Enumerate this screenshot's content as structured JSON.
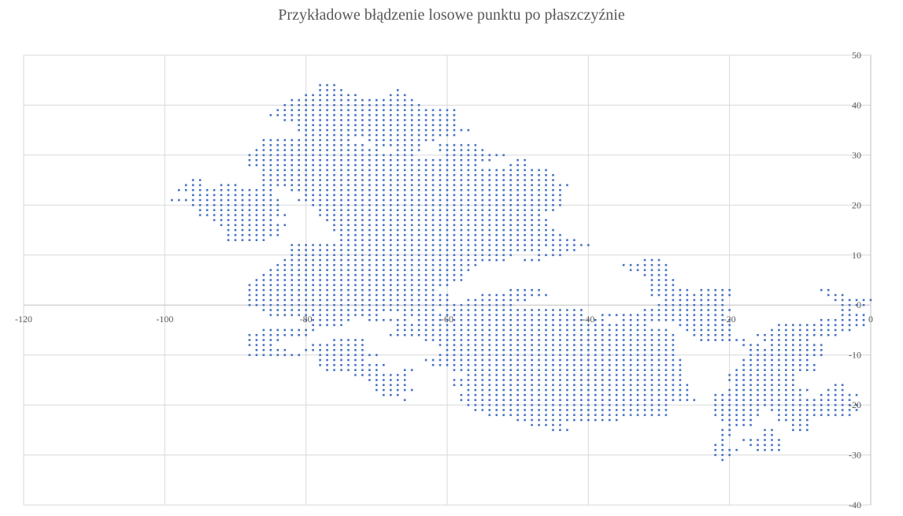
{
  "chart_data": {
    "type": "scatter",
    "title": "Przykładowe błądzenie losowe punktu po płaszczyźnie",
    "xlabel": "",
    "ylabel": "",
    "xlim": [
      -120,
      0
    ],
    "ylim": [
      -40,
      50
    ],
    "x_ticks": [
      -120,
      -100,
      -80,
      -60,
      -40,
      -20,
      0
    ],
    "y_ticks": [
      -40,
      -30,
      -20,
      -10,
      0,
      10,
      20,
      30,
      40,
      50
    ],
    "grid": true,
    "y_axis_position": "right",
    "marker_color": "#4472C4",
    "grid_color": "#d9d9d9",
    "axis_color": "#bfbfbf",
    "marker_note_step": 1,
    "region_rows": [
      [
        44,
        [
          [
            -78,
            -76
          ]
        ]
      ],
      [
        43,
        [
          [
            -78,
            -75
          ],
          [
            -67,
            -67
          ]
        ]
      ],
      [
        42,
        [
          [
            -80,
            -73
          ],
          [
            -68,
            -66
          ]
        ]
      ],
      [
        41,
        [
          [
            -82,
            -65
          ]
        ]
      ],
      [
        40,
        [
          [
            -83,
            -64
          ]
        ]
      ],
      [
        39,
        [
          [
            -84,
            -59
          ]
        ]
      ],
      [
        38,
        [
          [
            -85,
            -59
          ]
        ]
      ],
      [
        37,
        [
          [
            -83,
            -59
          ]
        ]
      ],
      [
        36,
        [
          [
            -81,
            -59
          ]
        ]
      ],
      [
        35,
        [
          [
            -81,
            -57
          ]
        ]
      ],
      [
        34,
        [
          [
            -80,
            -59
          ]
        ]
      ],
      [
        33,
        [
          [
            -86,
            -74
          ],
          [
            -71,
            -62
          ]
        ]
      ],
      [
        32,
        [
          [
            -86,
            -72
          ],
          [
            -70,
            -64
          ],
          [
            -61,
            -56
          ]
        ]
      ],
      [
        31,
        [
          [
            -87,
            -70
          ],
          [
            -67,
            -64
          ],
          [
            -61,
            -55
          ]
        ]
      ],
      [
        30,
        [
          [
            -88,
            -65
          ],
          [
            -60,
            -52
          ]
        ]
      ],
      [
        29,
        [
          [
            -88,
            -54
          ],
          [
            -50,
            -49
          ]
        ]
      ],
      [
        28,
        [
          [
            -88,
            -56
          ],
          [
            -51,
            -49
          ]
        ]
      ],
      [
        27,
        [
          [
            -86,
            -46
          ]
        ]
      ],
      [
        26,
        [
          [
            -86,
            -45
          ]
        ]
      ],
      [
        25,
        [
          [
            -96,
            -95
          ],
          [
            -86,
            -45
          ]
        ]
      ],
      [
        24,
        [
          [
            -97,
            -95
          ],
          [
            -92,
            -90
          ],
          [
            -86,
            -43
          ]
        ]
      ],
      [
        23,
        [
          [
            -98,
            -89
          ],
          [
            -88,
            -85
          ],
          [
            -82,
            -44
          ]
        ]
      ],
      [
        22,
        [
          [
            -96,
            -85
          ],
          [
            -80,
            -44
          ]
        ]
      ],
      [
        21,
        [
          [
            -99,
            -84
          ],
          [
            -81,
            -44
          ]
        ]
      ],
      [
        20,
        [
          [
            -96,
            -84
          ],
          [
            -79,
            -44
          ]
        ]
      ],
      [
        19,
        [
          [
            -95,
            -84
          ],
          [
            -78,
            -45
          ]
        ]
      ],
      [
        18,
        [
          [
            -95,
            -83
          ],
          [
            -78,
            -47
          ]
        ]
      ],
      [
        17,
        [
          [
            -93,
            -85
          ],
          [
            -77,
            -46
          ]
        ]
      ],
      [
        16,
        [
          [
            -92,
            -83
          ],
          [
            -76,
            -46
          ]
        ]
      ],
      [
        15,
        [
          [
            -91,
            -84
          ],
          [
            -76,
            -45
          ]
        ]
      ],
      [
        14,
        [
          [
            -91,
            -84
          ],
          [
            -75,
            -44
          ]
        ]
      ],
      [
        13,
        [
          [
            -91,
            -86
          ],
          [
            -75,
            -42
          ]
        ]
      ],
      [
        12,
        [
          [
            -82,
            -45
          ],
          [
            -44,
            -40
          ]
        ]
      ],
      [
        11,
        [
          [
            -82,
            -47
          ],
          [
            -45,
            -42
          ]
        ]
      ],
      [
        10,
        [
          [
            -82,
            -51
          ],
          [
            -47,
            -44
          ]
        ]
      ],
      [
        9,
        [
          [
            -83,
            -52
          ],
          [
            -49,
            -47
          ],
          [
            -32,
            -30
          ]
        ]
      ],
      [
        8,
        [
          [
            -84,
            -56
          ],
          [
            -35,
            -29
          ]
        ]
      ],
      [
        7,
        [
          [
            -85,
            -57
          ],
          [
            -34,
            -29
          ]
        ]
      ],
      [
        6,
        [
          [
            -86,
            -58
          ],
          [
            -32,
            -29
          ]
        ]
      ],
      [
        5,
        [
          [
            -87,
            -58
          ],
          [
            -31,
            -28
          ]
        ]
      ],
      [
        4,
        [
          [
            -88,
            -60
          ],
          [
            -31,
            -28
          ]
        ]
      ],
      [
        3,
        [
          [
            -88,
            -62
          ],
          [
            -51,
            -47
          ],
          [
            -31,
            -26
          ],
          [
            -24,
            -20
          ],
          [
            -7,
            -6
          ]
        ]
      ],
      [
        2,
        [
          [
            -88,
            -60
          ],
          [
            -55,
            -46
          ],
          [
            -31,
            -20
          ],
          [
            -6,
            -4
          ]
        ]
      ],
      [
        1,
        [
          [
            -88,
            -60
          ],
          [
            -57,
            -49
          ],
          [
            -29,
            -21
          ],
          [
            -5,
            -3
          ],
          [
            -2,
            0
          ]
        ]
      ],
      [
        0,
        [
          [
            -88,
            -60
          ],
          [
            -59,
            -51
          ],
          [
            -30,
            -21
          ],
          [
            -4,
            -1
          ]
        ]
      ],
      [
        -1,
        [
          [
            -86,
            -62
          ],
          [
            -60,
            -41
          ],
          [
            -32,
            -20
          ],
          [
            -4,
            -3
          ]
        ]
      ],
      [
        -2,
        [
          [
            -85,
            -70
          ],
          [
            -66,
            -41
          ],
          [
            -38,
            -21
          ],
          [
            -4,
            -1
          ]
        ]
      ],
      [
        -3,
        [
          [
            -80,
            -74
          ],
          [
            -71,
            -66
          ],
          [
            -64,
            -38
          ],
          [
            -35,
            -20
          ],
          [
            -7,
            -1
          ]
        ]
      ],
      [
        -4,
        [
          [
            -79,
            -75
          ],
          [
            -67,
            -32
          ],
          [
            -27,
            -20
          ],
          [
            -13,
            -1
          ]
        ]
      ],
      [
        -5,
        [
          [
            -86,
            -79
          ],
          [
            -67,
            -29
          ],
          [
            -26,
            -20
          ],
          [
            -14,
            -3
          ]
        ]
      ],
      [
        -6,
        [
          [
            -88,
            -80
          ],
          [
            -68,
            -28
          ],
          [
            -25,
            -20
          ],
          [
            -16,
            -5
          ]
        ]
      ],
      [
        -7,
        [
          [
            -88,
            -84
          ],
          [
            -76,
            -72
          ],
          [
            -63,
            -28
          ],
          [
            -24,
            -18
          ],
          [
            -15,
            -9
          ]
        ]
      ],
      [
        -8,
        [
          [
            -88,
            -85
          ],
          [
            -79,
            -72
          ],
          [
            -61,
            -28
          ],
          [
            -18,
            -16
          ],
          [
            -14,
            -7
          ]
        ]
      ],
      [
        -9,
        [
          [
            -87,
            -83
          ],
          [
            -80,
            -72
          ],
          [
            -60,
            -28
          ],
          [
            -17,
            -7
          ]
        ]
      ],
      [
        -10,
        [
          [
            -88,
            -81
          ],
          [
            -78,
            -70
          ],
          [
            -61,
            -28
          ],
          [
            -17,
            -7
          ]
        ]
      ],
      [
        -11,
        [
          [
            -78,
            -72
          ],
          [
            -63,
            -27
          ],
          [
            -18,
            -9
          ]
        ]
      ],
      [
        -12,
        [
          [
            -78,
            -69
          ],
          [
            -62,
            -27
          ],
          [
            -18,
            -8
          ]
        ]
      ],
      [
        -13,
        [
          [
            -77,
            -70
          ],
          [
            -66,
            -65
          ],
          [
            -59,
            -27
          ],
          [
            -19,
            -8
          ]
        ]
      ],
      [
        -14,
        [
          [
            -73,
            -66
          ],
          [
            -57,
            -27
          ],
          [
            -20,
            -11
          ]
        ]
      ],
      [
        -15,
        [
          [
            -71,
            -66
          ],
          [
            -59,
            -27
          ],
          [
            -20,
            -11
          ]
        ]
      ],
      [
        -16,
        [
          [
            -70,
            -66
          ],
          [
            -59,
            -26
          ],
          [
            -19,
            -11
          ],
          [
            -5,
            -4
          ]
        ]
      ],
      [
        -17,
        [
          [
            -70,
            -65
          ],
          [
            -57,
            -26
          ],
          [
            -20,
            -9
          ],
          [
            -6,
            -4
          ]
        ]
      ],
      [
        -18,
        [
          [
            -69,
            -67
          ],
          [
            -58,
            -26
          ],
          [
            -22,
            -10
          ],
          [
            -7,
            -2
          ]
        ]
      ],
      [
        -19,
        [
          [
            -66,
            -66
          ],
          [
            -58,
            -25
          ],
          [
            -22,
            -3
          ]
        ]
      ],
      [
        -20,
        [
          [
            -57,
            -29
          ],
          [
            -22,
            -2
          ]
        ]
      ],
      [
        -21,
        [
          [
            -56,
            -29
          ],
          [
            -22,
            -16
          ],
          [
            -14,
            -2
          ]
        ]
      ],
      [
        -22,
        [
          [
            -54,
            -29
          ],
          [
            -22,
            -16
          ],
          [
            -13,
            -3
          ]
        ]
      ],
      [
        -23,
        [
          [
            -50,
            -36
          ],
          [
            -21,
            -17
          ],
          [
            -13,
            -9
          ]
        ]
      ],
      [
        -24,
        [
          [
            -48,
            -44
          ],
          [
            -20,
            -17
          ],
          [
            -11,
            -9
          ]
        ]
      ],
      [
        -25,
        [
          [
            -45,
            -43
          ],
          [
            -21,
            -20
          ],
          [
            -15,
            -14
          ],
          [
            -11,
            -9
          ]
        ]
      ],
      [
        -26,
        [
          [
            -21,
            -20
          ],
          [
            -15,
            -14
          ]
        ]
      ],
      [
        -27,
        [
          [
            -21,
            -21
          ],
          [
            -18,
            -13
          ]
        ]
      ],
      [
        -28,
        [
          [
            -22,
            -21
          ],
          [
            -17,
            -13
          ]
        ]
      ],
      [
        -29,
        [
          [
            -22,
            -19
          ],
          [
            -16,
            -13
          ]
        ]
      ],
      [
        -30,
        [
          [
            -22,
            -20
          ]
        ]
      ],
      [
        -31,
        [
          [
            -21,
            -21
          ]
        ]
      ]
    ]
  }
}
